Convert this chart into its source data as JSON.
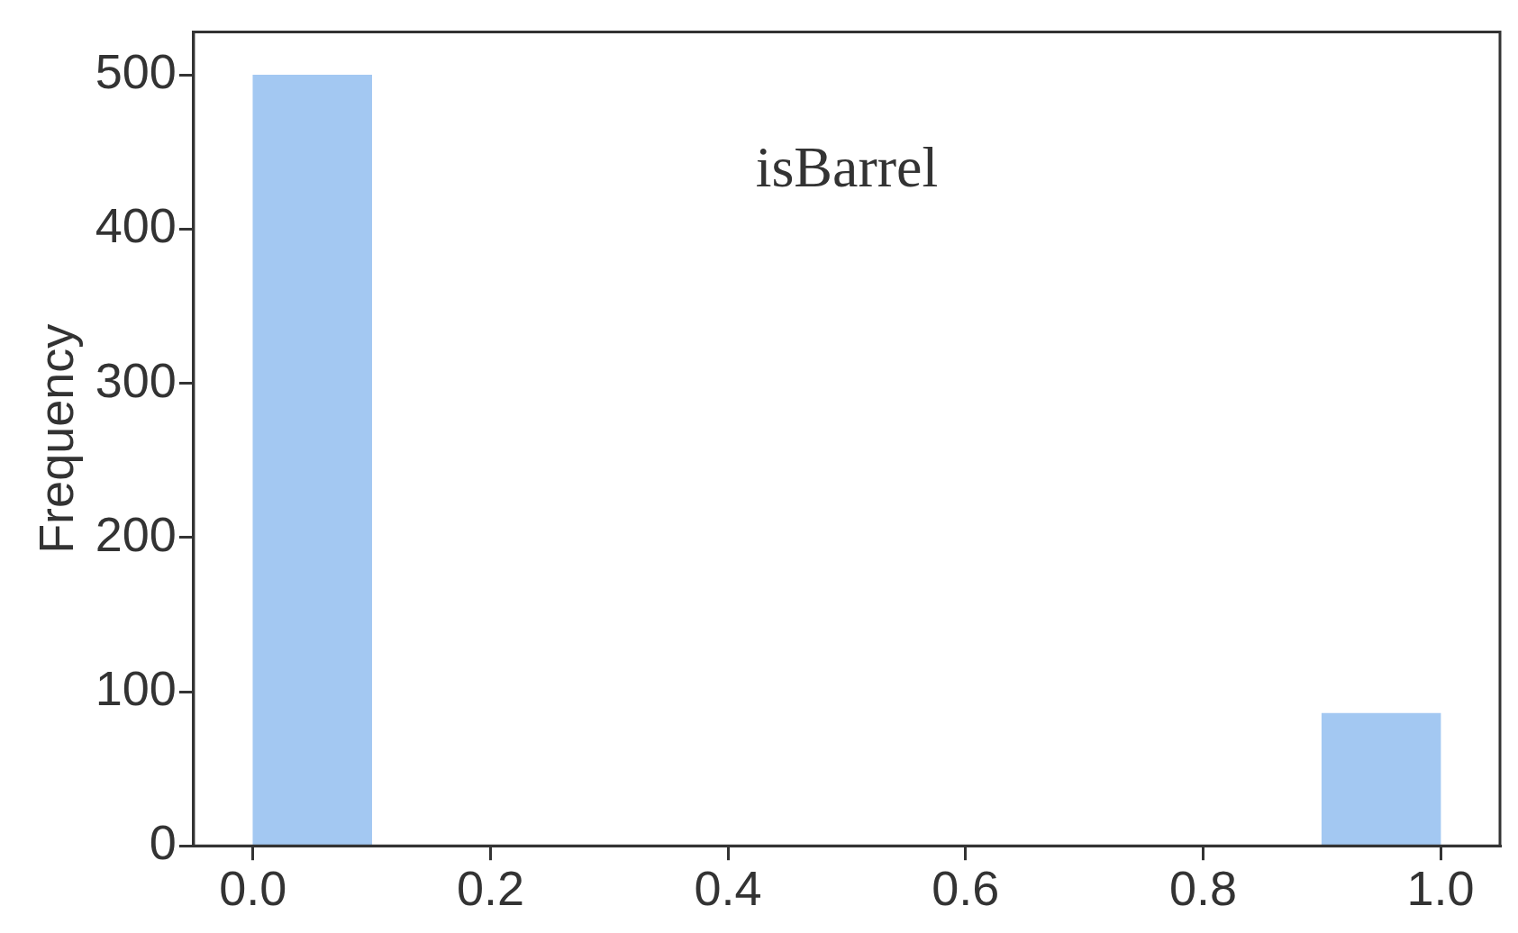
{
  "chart_data": {
    "type": "histogram",
    "title": "isBarrel",
    "ylabel": "Frequency",
    "bins": [
      0,
      0.1,
      0.2,
      0.3,
      0.4,
      0.5,
      0.6,
      0.7,
      0.8,
      0.9,
      1.0
    ],
    "values": [
      500,
      0,
      0,
      0,
      0,
      0,
      0,
      0,
      0,
      86
    ],
    "color": "#a3c8f2",
    "xlim": [
      -0.05,
      1.05
    ],
    "ylim": [
      0,
      528
    ],
    "xticks": [
      {
        "value": 0,
        "label": "0.0"
      },
      {
        "value": 0.2,
        "label": "0.2"
      },
      {
        "value": 0.4,
        "label": "0.4"
      },
      {
        "value": 0.6,
        "label": "0.6"
      },
      {
        "value": 0.8,
        "label": "0.8"
      },
      {
        "value": 1,
        "label": "1.0"
      }
    ],
    "yticks": [
      0,
      100,
      200,
      300,
      400,
      500
    ],
    "grid": false,
    "legend": false
  }
}
